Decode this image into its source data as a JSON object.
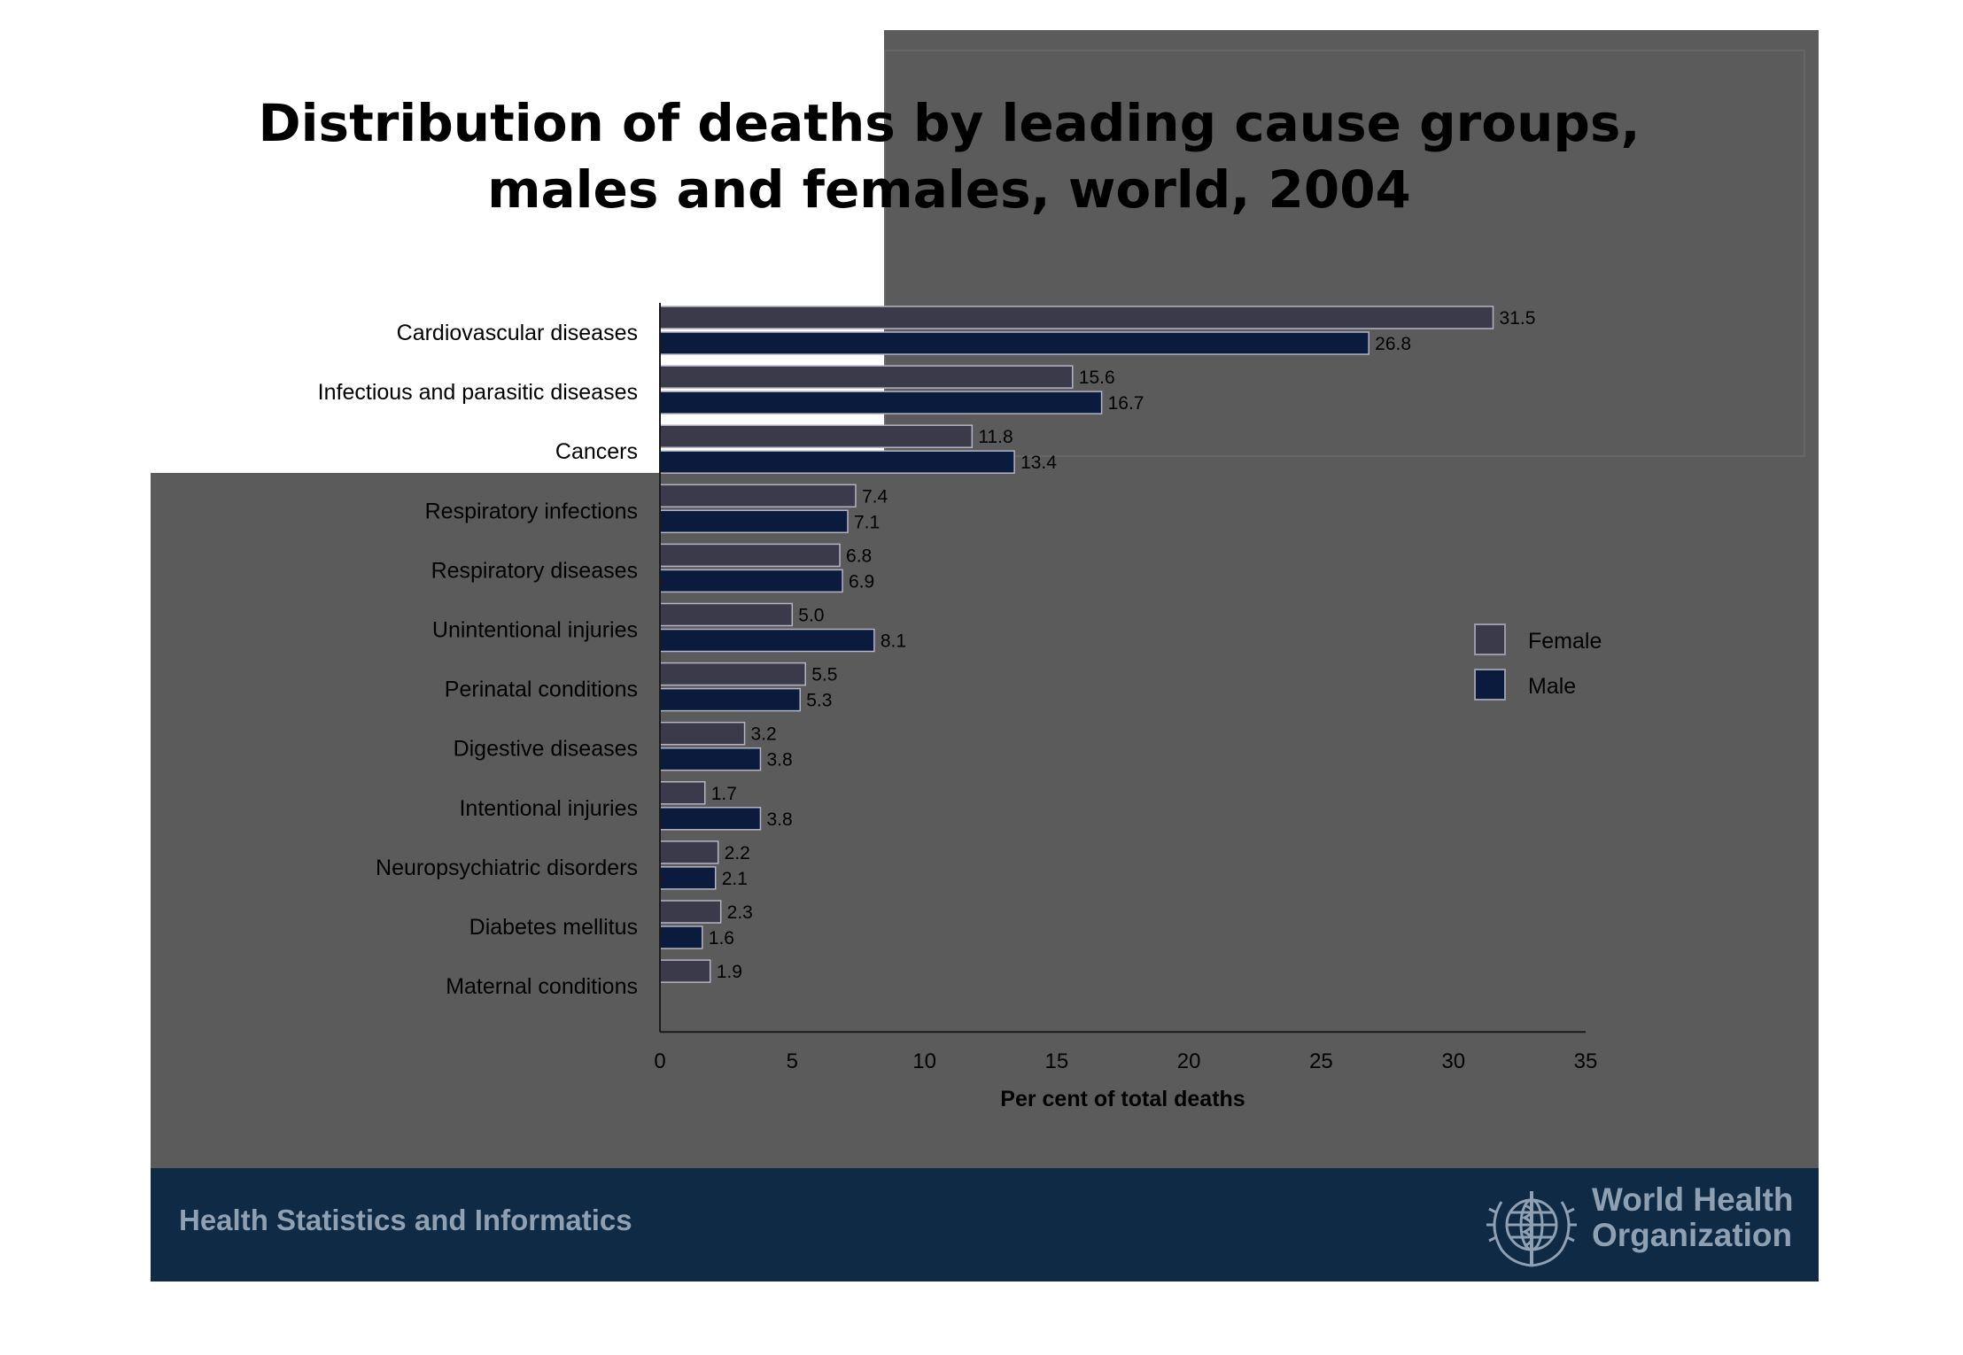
{
  "slide": {
    "title_lines": [
      "Distribution of deaths by leading cause groups,",
      "males and females, world, 2004"
    ]
  },
  "chart_data": {
    "type": "bar",
    "orientation": "horizontal",
    "categories": [
      "Cardiovascular diseases",
      "Infectious and parasitic diseases",
      "Cancers",
      "Respiratory infections",
      "Respiratory diseases",
      "Unintentional injuries",
      "Perinatal conditions",
      "Digestive diseases",
      "Intentional injuries",
      "Neuropsychiatric disorders",
      "Diabetes mellitus",
      "Maternal conditions"
    ],
    "series": [
      {
        "name": "Female",
        "color": "#3a3a4a",
        "values": [
          31.5,
          15.6,
          11.8,
          7.4,
          6.8,
          5.0,
          5.5,
          3.2,
          1.7,
          2.2,
          2.3,
          1.9
        ],
        "labels": [
          "31.5",
          "15.6",
          "11.8",
          "7.4",
          "6.8",
          "5.0",
          "5.5",
          "3.2",
          "1.7",
          "2.2",
          "2.3",
          "1.9"
        ]
      },
      {
        "name": "Male",
        "color": "#0b1b3d",
        "values": [
          26.8,
          16.7,
          13.4,
          7.1,
          6.9,
          8.1,
          5.3,
          3.8,
          3.8,
          2.1,
          1.6,
          null
        ],
        "labels": [
          "26.8",
          "16.7",
          "13.4",
          "7.1",
          "6.9",
          "8.1",
          "5.3",
          "3.8",
          "3.8",
          "2.1",
          "1.6",
          null
        ]
      }
    ],
    "xlabel": "Per cent of total deaths",
    "xlim": [
      0,
      35
    ],
    "xticks": [
      "0",
      "5",
      "10",
      "15",
      "20",
      "25",
      "30",
      "35"
    ],
    "legend": "right",
    "grid": false
  },
  "footer": {
    "left_text": "Health Statistics and Informatics",
    "org_name_lines": [
      "World Health",
      "Organization"
    ]
  }
}
